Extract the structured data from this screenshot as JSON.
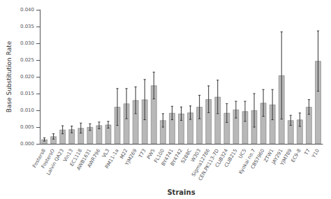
{
  "chart_data": {
    "type": "bar",
    "xlabel": "Strains",
    "ylabel": "Base Substitution Rate",
    "categories": [
      "Fosters8",
      "FostersO",
      "Lalvin QA23",
      "Vin13",
      "EC1118",
      "AWB1631",
      "AWR796",
      "VL3",
      "RM11-1a",
      "M22",
      "YJM269",
      "T73",
      "PW5",
      "FL100",
      "BY4741",
      "BY4742",
      "S288C",
      "W303",
      "Sigma12786",
      "CEN.PK113-7D",
      "CLIB324",
      "CLIB215",
      "UC5",
      "Kyokai no.7",
      "CBS7960",
      "ZTW1",
      "JAY291",
      "YJM789",
      "EC9-8",
      "T7",
      "Y10"
    ],
    "values": [
      0.0013,
      0.0022,
      0.0042,
      0.0043,
      0.0047,
      0.005,
      0.0055,
      0.0057,
      0.011,
      0.012,
      0.013,
      0.0132,
      0.0174,
      0.007,
      0.0092,
      0.009,
      0.0093,
      0.011,
      0.0133,
      0.014,
      0.0092,
      0.0102,
      0.0097,
      0.01,
      0.0122,
      0.0117,
      0.0204,
      0.007,
      0.0072,
      0.011,
      0.0247
    ],
    "errors": [
      0.0005,
      0.0008,
      0.0012,
      0.001,
      0.0015,
      0.001,
      0.001,
      0.001,
      0.0055,
      0.0045,
      0.004,
      0.006,
      0.004,
      0.002,
      0.002,
      0.002,
      0.002,
      0.0035,
      0.004,
      0.005,
      0.0028,
      0.0025,
      0.003,
      0.005,
      0.004,
      0.0045,
      0.013,
      0.0015,
      0.002,
      0.0022,
      0.009
    ],
    "color": "#b8b8b8",
    "ylim": [
      0,
      0.04
    ],
    "yticks": [
      {
        "value": 0,
        "label": "0.000"
      },
      0.005,
      {
        "value": 0.01,
        "label": "0.010"
      },
      0.015,
      {
        "value": 0.02,
        "label": "0.020"
      },
      0.025,
      {
        "value": 0.03,
        "label": "0.030"
      },
      0.035,
      {
        "value": 0.04,
        "label": "0.040"
      }
    ],
    "grid": false
  }
}
